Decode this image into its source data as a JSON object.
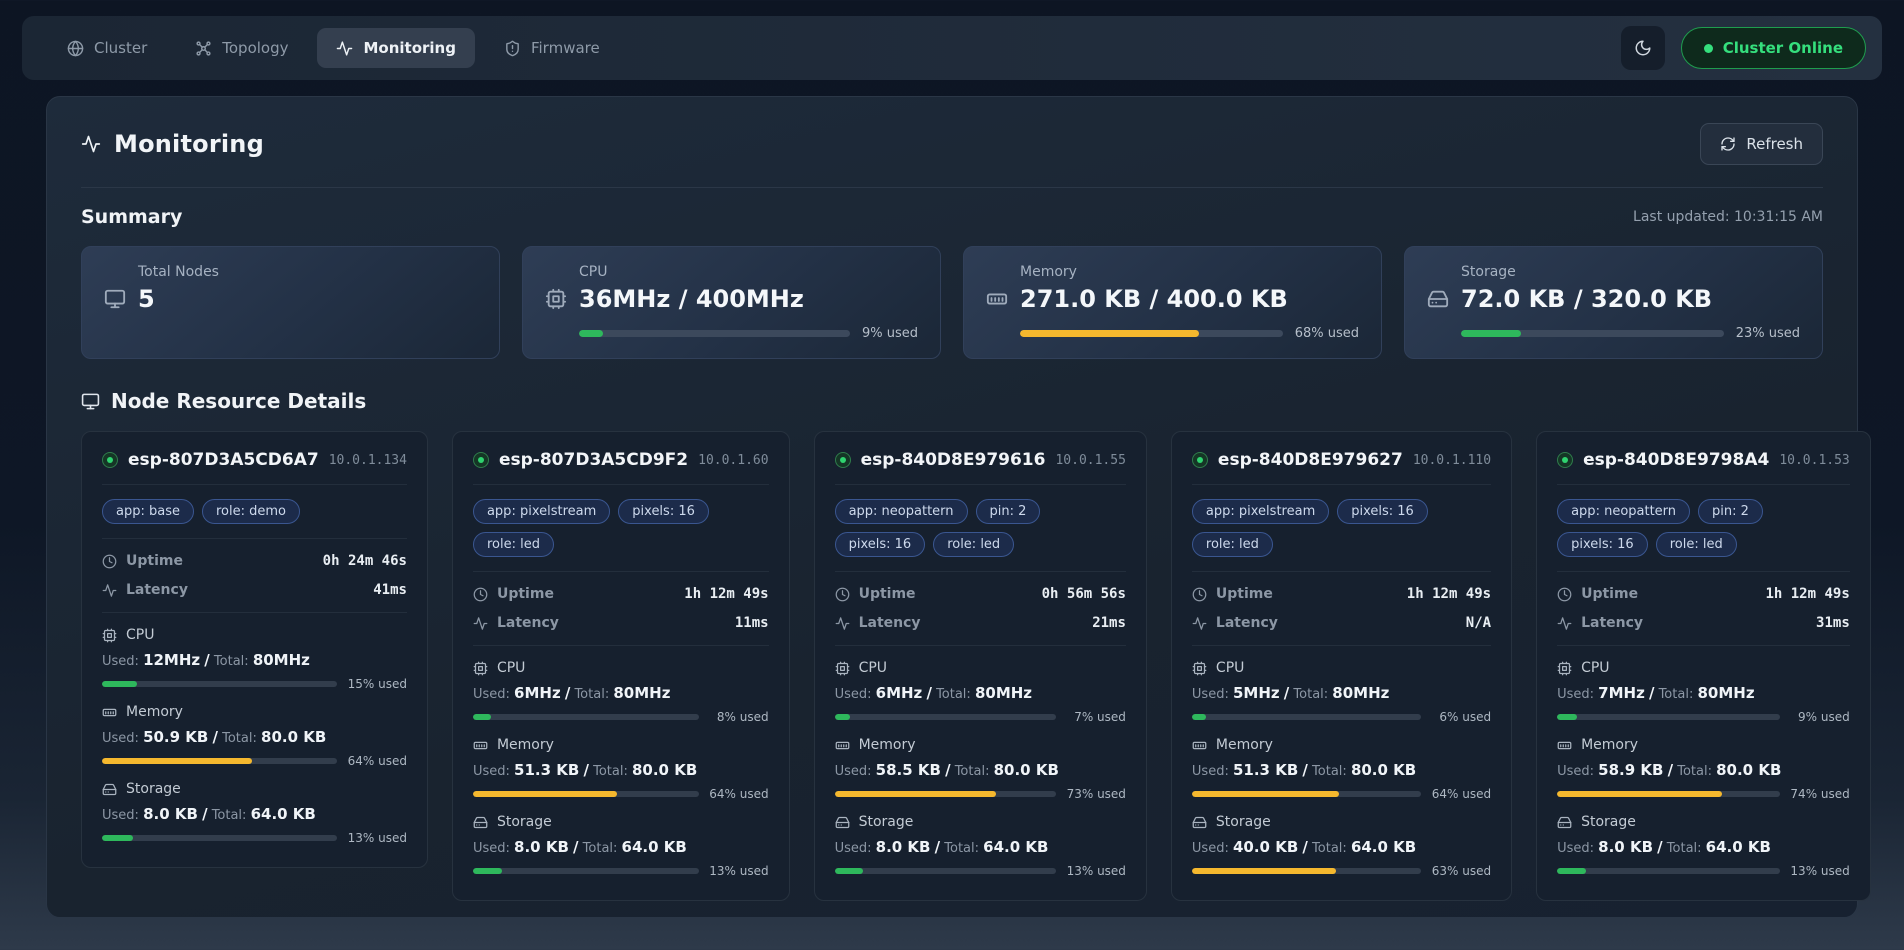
{
  "colors": {
    "green": "#2eb85c",
    "yellow": "#f5b82e",
    "status_green": "#35df7d"
  },
  "nav": {
    "tabs": [
      {
        "label": "Cluster",
        "icon": "globe",
        "active": false
      },
      {
        "label": "Topology",
        "icon": "topology",
        "active": false
      },
      {
        "label": "Monitoring",
        "icon": "activity",
        "active": true
      },
      {
        "label": "Firmware",
        "icon": "shield",
        "active": false
      }
    ],
    "theme_toggle_icon": "moon-icon",
    "status_badge": "Cluster Online"
  },
  "page": {
    "title": "Monitoring",
    "refresh_label": "Refresh"
  },
  "summary": {
    "heading": "Summary",
    "last_updated": "Last updated: 10:31:15 AM",
    "cards": [
      {
        "label": "Total Nodes",
        "value": "5",
        "icon": "monitor"
      },
      {
        "label": "CPU",
        "value": "36MHz / 400MHz",
        "icon": "cpu",
        "percent": 9,
        "percent_label": "9% used",
        "color": "green"
      },
      {
        "label": "Memory",
        "value": "271.0 KB / 400.0 KB",
        "icon": "memory",
        "percent": 68,
        "percent_label": "68% used",
        "color": "yellow"
      },
      {
        "label": "Storage",
        "value": "72.0 KB / 320.0 KB",
        "icon": "storage",
        "percent": 23,
        "percent_label": "23% used",
        "color": "green"
      }
    ]
  },
  "nodes": {
    "heading": "Node Resource Details",
    "labels": {
      "uptime": "Uptime",
      "latency": "Latency",
      "cpu": "CPU",
      "memory": "Memory",
      "storage": "Storage",
      "used": "Used:",
      "total": "Total:",
      "slash": "/"
    },
    "cards": [
      {
        "name": "esp-807D3A5CD6A7",
        "ip": "10.0.1.134",
        "badges": [
          "app: base",
          "role: demo"
        ],
        "uptime": "0h 24m 46s",
        "latency": "41ms",
        "cpu": {
          "used": "12MHz",
          "total": "80MHz",
          "percent": 15,
          "label": "15% used",
          "color": "green"
        },
        "memory": {
          "used": "50.9 KB",
          "total": "80.0 KB",
          "percent": 64,
          "label": "64% used",
          "color": "yellow"
        },
        "storage": {
          "used": "8.0 KB",
          "total": "64.0 KB",
          "percent": 13,
          "label": "13% used",
          "color": "green"
        }
      },
      {
        "name": "esp-807D3A5CD9F2",
        "ip": "10.0.1.60",
        "badges": [
          "app: pixelstream",
          "pixels: 16",
          "role: led"
        ],
        "uptime": "1h 12m 49s",
        "latency": "11ms",
        "cpu": {
          "used": "6MHz",
          "total": "80MHz",
          "percent": 8,
          "label": "8% used",
          "color": "green"
        },
        "memory": {
          "used": "51.3 KB",
          "total": "80.0 KB",
          "percent": 64,
          "label": "64% used",
          "color": "yellow"
        },
        "storage": {
          "used": "8.0 KB",
          "total": "64.0 KB",
          "percent": 13,
          "label": "13% used",
          "color": "green"
        }
      },
      {
        "name": "esp-840D8E979616",
        "ip": "10.0.1.55",
        "badges": [
          "app: neopattern",
          "pin: 2",
          "pixels: 16",
          "role: led"
        ],
        "uptime": "0h 56m 56s",
        "latency": "21ms",
        "cpu": {
          "used": "6MHz",
          "total": "80MHz",
          "percent": 7,
          "label": "7% used",
          "color": "green"
        },
        "memory": {
          "used": "58.5 KB",
          "total": "80.0 KB",
          "percent": 73,
          "label": "73% used",
          "color": "yellow"
        },
        "storage": {
          "used": "8.0 KB",
          "total": "64.0 KB",
          "percent": 13,
          "label": "13% used",
          "color": "green"
        }
      },
      {
        "name": "esp-840D8E979627",
        "ip": "10.0.1.110",
        "badges": [
          "app: pixelstream",
          "pixels: 16",
          "role: led"
        ],
        "uptime": "1h 12m 49s",
        "latency": "N/A",
        "cpu": {
          "used": "5MHz",
          "total": "80MHz",
          "percent": 6,
          "label": "6% used",
          "color": "green"
        },
        "memory": {
          "used": "51.3 KB",
          "total": "80.0 KB",
          "percent": 64,
          "label": "64% used",
          "color": "yellow"
        },
        "storage": {
          "used": "40.0 KB",
          "total": "64.0 KB",
          "percent": 63,
          "label": "63% used",
          "color": "yellow"
        }
      },
      {
        "name": "esp-840D8E9798A4",
        "ip": "10.0.1.53",
        "badges": [
          "app: neopattern",
          "pin: 2",
          "pixels: 16",
          "role: led"
        ],
        "uptime": "1h 12m 49s",
        "latency": "31ms",
        "cpu": {
          "used": "7MHz",
          "total": "80MHz",
          "percent": 9,
          "label": "9% used",
          "color": "green"
        },
        "memory": {
          "used": "58.9 KB",
          "total": "80.0 KB",
          "percent": 74,
          "label": "74% used",
          "color": "yellow"
        },
        "storage": {
          "used": "8.0 KB",
          "total": "64.0 KB",
          "percent": 13,
          "label": "13% used",
          "color": "green"
        }
      }
    ]
  }
}
